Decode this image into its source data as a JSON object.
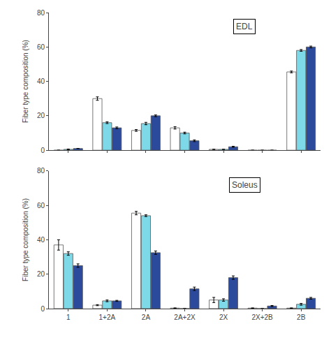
{
  "chart_data": [
    {
      "type": "bar",
      "title": "EDL",
      "ylabel": "Fiber type composition (%)",
      "categories": [
        "1",
        "1+2A",
        "2A",
        "2A+2X",
        "2X",
        "2X+2B",
        "2B"
      ],
      "series": [
        {
          "color": "white",
          "values": [
            0.0,
            30.0,
            11.5,
            13.0,
            0.5,
            0.0,
            45.5
          ],
          "errors": [
            0.0,
            1.0,
            0.5,
            0.7,
            0.0,
            0.0,
            0.5
          ]
        },
        {
          "color": "#7DD8E8",
          "values": [
            0.5,
            16.0,
            15.5,
            10.0,
            0.5,
            0.0,
            58.0
          ],
          "errors": [
            0.2,
            0.5,
            0.7,
            0.5,
            0.0,
            0.0,
            0.5
          ]
        },
        {
          "color": "#2B4A9C",
          "values": [
            1.0,
            13.0,
            20.0,
            5.5,
            2.0,
            0.0,
            60.0
          ],
          "errors": [
            0.0,
            0.5,
            0.5,
            0.5,
            0.3,
            0.0,
            0.5
          ]
        }
      ],
      "ylim": [
        0,
        80
      ],
      "yticks": [
        0,
        20,
        40,
        60,
        80
      ],
      "grid": false,
      "tick_labels": "y"
    },
    {
      "type": "bar",
      "title": "Soleus",
      "ylabel": "Fiber type composition (%)",
      "categories": [
        "1",
        "1+2A",
        "2A",
        "2A+2X",
        "2X",
        "2X+2B",
        "2B"
      ],
      "series": [
        {
          "color": "white",
          "values": [
            37.0,
            2.0,
            55.5,
            0.3,
            5.0,
            0.3,
            0.3
          ],
          "errors": [
            3.0,
            0.3,
            1.0,
            0.1,
            1.5,
            0.1,
            0.1
          ]
        },
        {
          "color": "#7DD8E8",
          "values": [
            32.0,
            4.5,
            54.0,
            0.0,
            5.0,
            0.0,
            2.5
          ],
          "errors": [
            1.0,
            0.5,
            0.5,
            0.0,
            0.7,
            0.0,
            0.5
          ]
        },
        {
          "color": "#2B4A9C",
          "values": [
            25.0,
            4.5,
            32.5,
            11.5,
            18.0,
            1.5,
            6.0
          ],
          "errors": [
            1.0,
            0.3,
            1.0,
            1.0,
            1.0,
            0.3,
            0.5
          ]
        }
      ],
      "ylim": [
        0,
        80
      ],
      "yticks": [
        0,
        20,
        40,
        60,
        80
      ],
      "grid": false
    }
  ]
}
